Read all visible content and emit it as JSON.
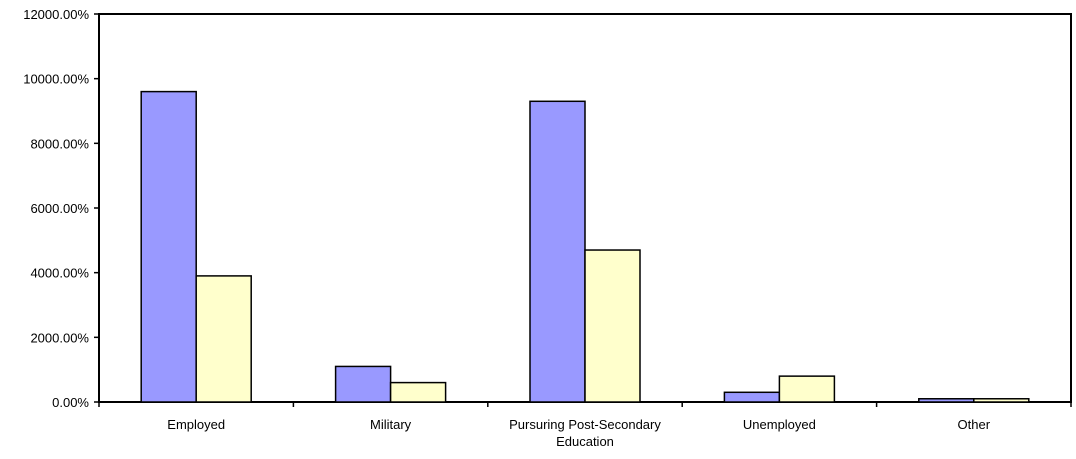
{
  "chart_data": {
    "type": "bar",
    "categories": [
      [
        "Employed"
      ],
      [
        "Military"
      ],
      [
        "Pursuring Post-Secondary",
        "Education"
      ],
      [
        "Unemployed"
      ],
      [
        "Other"
      ]
    ],
    "series": [
      {
        "values": [
          9600,
          1100,
          9300,
          300,
          100
        ],
        "color": "#9999ff"
      },
      {
        "values": [
          3900,
          600,
          4700,
          800,
          100
        ],
        "color": "#ffffcc"
      }
    ],
    "y_ticks": [
      "0.00%",
      "2000.00%",
      "4000.00%",
      "6000.00%",
      "8000.00%",
      "10000.00%",
      "12000.00%"
    ],
    "ylim": [
      0,
      12000
    ],
    "grid": false,
    "legend": "none"
  }
}
